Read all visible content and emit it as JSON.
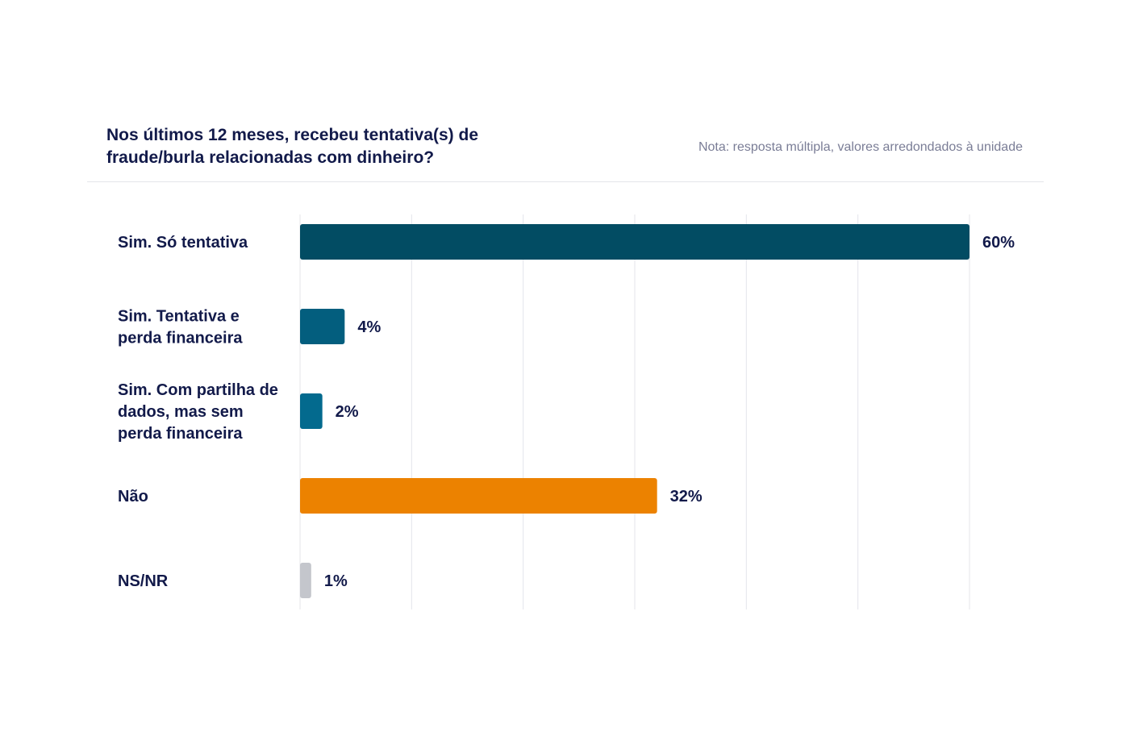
{
  "header": {
    "title": "Nos últimos 12 meses, recebeu tentativa(s) de fraude/burla relacionadas com dinheiro?",
    "note": "Nota: resposta múltipla, valores arredondados à unidade"
  },
  "chart_data": {
    "type": "bar",
    "orientation": "horizontal",
    "title": "Nos últimos 12 meses, recebeu tentativa(s) de fraude/burla relacionadas com dinheiro?",
    "categories": [
      "Sim. Só tentativa",
      "Sim. Tentativa e perda financeira",
      "Sim. Com partilha de dados, mas sem perda financeira",
      "Não",
      "NS/NR"
    ],
    "category_lines": [
      [
        "Sim. Só tentativa"
      ],
      [
        "Sim. Tentativa e",
        "perda financeira"
      ],
      [
        "Sim. Com partilha de",
        "dados, mas sem",
        "perda financeira"
      ],
      [
        "Não"
      ],
      [
        "NS/NR"
      ]
    ],
    "values": [
      60,
      4,
      2,
      32,
      1
    ],
    "value_labels": [
      "60%",
      "4%",
      "2%",
      "32%",
      "1%"
    ],
    "colors": [
      "#024c63",
      "#035e7e",
      "#036a8e",
      "#ec8200",
      "#c4c6cc"
    ],
    "xlim": [
      0,
      60
    ],
    "x_grid_step": 10,
    "grid": true,
    "grid_color": "#e4e5ea",
    "xlabel": "",
    "ylabel": ""
  }
}
